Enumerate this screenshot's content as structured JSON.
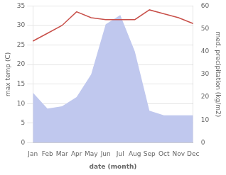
{
  "chart_data": {
    "type": "line",
    "categories": [
      "Jan",
      "Feb",
      "Mar",
      "Apr",
      "May",
      "Jun",
      "Jul",
      "Aug",
      "Sep",
      "Oct",
      "Nov",
      "Dec"
    ],
    "series": [
      {
        "type": "area",
        "axis": "y2",
        "color": "#c0c8ee",
        "values": [
          22,
          15,
          16,
          20,
          30,
          52,
          56,
          40,
          14,
          12,
          12,
          12
        ]
      },
      {
        "type": "line",
        "color": "#c8504a",
        "values": [
          26,
          28,
          30,
          33.5,
          32,
          31.5,
          31.5,
          31.5,
          34,
          33,
          32,
          30.5
        ]
      }
    ],
    "xlabel": "date (month)",
    "ylabel": "max temp (C)",
    "y2label": "med. precipitation (kg/m2)",
    "ylim": [
      0,
      35
    ],
    "yticks": [
      0,
      5,
      10,
      15,
      20,
      25,
      30,
      35
    ],
    "y2lim": [
      0,
      60
    ],
    "y2ticks": [
      0,
      10,
      20,
      30,
      40,
      50,
      60
    ],
    "grid": true
  }
}
